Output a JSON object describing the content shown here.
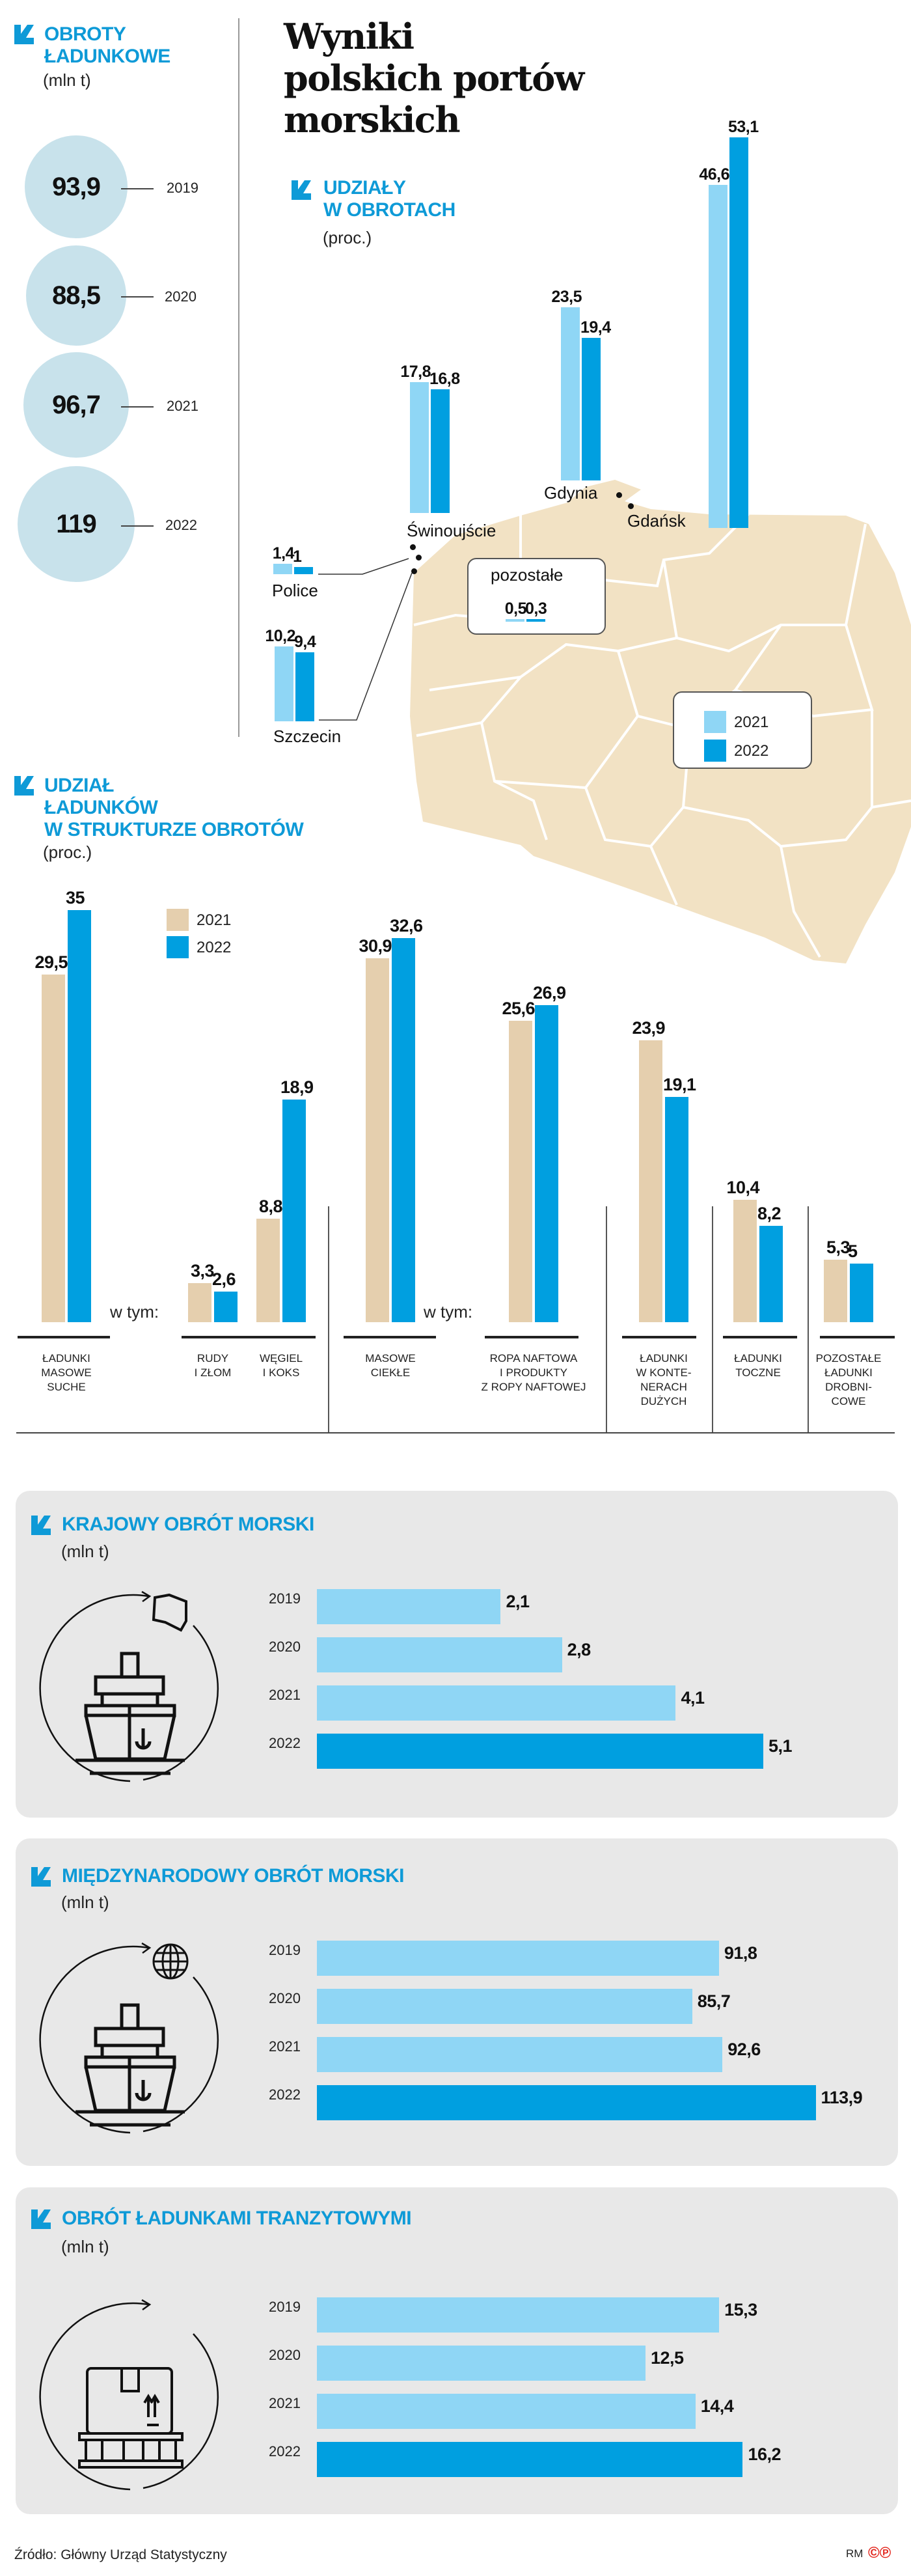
{
  "header": {
    "title": "Wyniki\npolskich portów\nmorskich"
  },
  "turnover": {
    "title": "OBROTY\nŁADUNKOWE",
    "unit": "(mln t)",
    "items": [
      {
        "year": "2019",
        "value": "93,9"
      },
      {
        "year": "2020",
        "value": "88,5"
      },
      {
        "year": "2021",
        "value": "96,7"
      },
      {
        "year": "2022",
        "value": "119"
      }
    ]
  },
  "port_section": {
    "title": "UDZIAŁY\nW OBROTACH",
    "unit": "(proc.)"
  },
  "cargo_section": {
    "title": "UDZIAŁ\nŁADUNKÓW\nW STRUKTURZE OBROTÓW",
    "unit": "(proc.)",
    "of_which": "w tym:"
  },
  "colors": {
    "accent": "#0e9ad7",
    "y2021_light": "#8fd6f5",
    "y2022": "#009fe0",
    "beige": "#e5cfae",
    "map": "#f2e2c4",
    "circle": "#c8e2eb",
    "panel": "#e8e8e8"
  },
  "chart_data": [
    {
      "type": "bar",
      "title": "UDZIAŁY W OBROTACH",
      "unit": "(proc.)",
      "legend": [
        "2021",
        "2022"
      ],
      "categories": [
        "Police",
        "Szczecin",
        "Świnoujście",
        "Gdynia",
        "Gdańsk",
        "pozostałe"
      ],
      "series": [
        {
          "name": "2021",
          "values": [
            1.4,
            10.2,
            17.8,
            23.5,
            46.6,
            0.5
          ],
          "labels": [
            "1,4",
            "10,2",
            "17,8",
            "23,5",
            "46,6",
            "0,5"
          ]
        },
        {
          "name": "2022",
          "values": [
            1,
            9.4,
            16.8,
            19.4,
            53.1,
            0.3
          ],
          "labels": [
            "1",
            "9,4",
            "16,8",
            "19,4",
            "53,1",
            "0,3"
          ]
        }
      ]
    },
    {
      "type": "bar",
      "title": "UDZIAŁ ŁADUNKÓW W STRUKTURZE OBROTÓW",
      "unit": "(proc.)",
      "legend": [
        "2021",
        "2022"
      ],
      "categories": [
        "ŁADUNKI\nMASOWE\nSUCHE",
        "RUDY\nI ZŁOM",
        "WĘGIEL\nI KOKS",
        "MASOWE\nCIEKŁE",
        "ROPA NAFTOWA\nI PRODUKTY\nZ ROPY NAFTOWEJ",
        "ŁADUNKI\nW KONTE-\nNERACH\nDUŻYCH",
        "ŁADUNKI\nTOCZNE",
        "POZOSTAŁE\nŁADUNKI\nDROBNI-\nCOWE"
      ],
      "series": [
        {
          "name": "2021",
          "values": [
            29.5,
            3.3,
            8.8,
            30.9,
            25.6,
            23.9,
            10.4,
            5.3
          ],
          "labels": [
            "29,5",
            "3,3",
            "8,8",
            "30,9",
            "25,6",
            "23,9",
            "10,4",
            "5,3"
          ]
        },
        {
          "name": "2022",
          "values": [
            35,
            2.6,
            18.9,
            32.6,
            26.9,
            19.1,
            8.2,
            5
          ],
          "labels": [
            "35",
            "2,6",
            "18,9",
            "32,6",
            "26,9",
            "19,1",
            "8,2",
            "5"
          ]
        }
      ]
    },
    {
      "type": "bar",
      "orientation": "horizontal",
      "title": "KRAJOWY OBRÓT MORSKI",
      "unit": "(mln t)",
      "categories": [
        "2019",
        "2020",
        "2021",
        "2022"
      ],
      "values": [
        2.1,
        2.8,
        4.1,
        5.1
      ],
      "labels": [
        "2,1",
        "2,8",
        "4,1",
        "5,1"
      ]
    },
    {
      "type": "bar",
      "orientation": "horizontal",
      "title": "MIĘDZYNARODOWY OBRÓT MORSKI",
      "unit": "(mln t)",
      "categories": [
        "2019",
        "2020",
        "2021",
        "2022"
      ],
      "values": [
        91.8,
        85.7,
        92.6,
        113.9
      ],
      "labels": [
        "91,8",
        "85,7",
        "92,6",
        "113,9"
      ]
    },
    {
      "type": "bar",
      "orientation": "horizontal",
      "title": "OBRÓT ŁADUNKAMI TRANZYTOWYMI",
      "unit": "(mln t)",
      "categories": [
        "2019",
        "2020",
        "2021",
        "2022"
      ],
      "values": [
        15.3,
        12.5,
        14.4,
        16.2
      ],
      "labels": [
        "15,3",
        "12,5",
        "14,4",
        "16,2"
      ]
    }
  ],
  "footer": {
    "source": "Źródło: Główny Urząd Statystyczny",
    "credit": "RM",
    "logo": "©℗"
  }
}
